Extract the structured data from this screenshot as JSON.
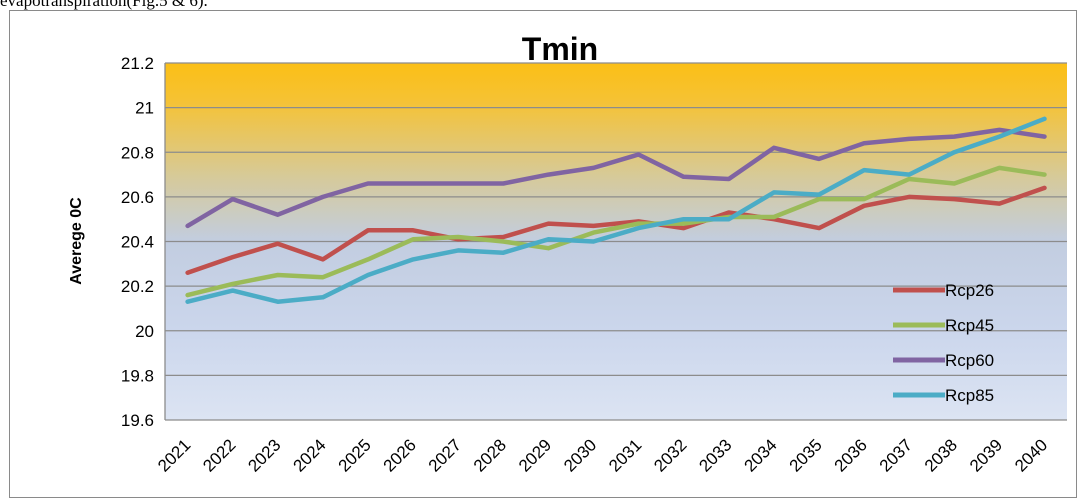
{
  "caption": "evapotranspiration(Fig.5 & 6).",
  "chart_data": {
    "type": "line",
    "title": "Tmin",
    "xlabel": "",
    "ylabel": "Averege 0C",
    "categories": [
      "2021",
      "2022",
      "2023",
      "2024",
      "2025",
      "2026",
      "2027",
      "2028",
      "2029",
      "2030",
      "2031",
      "2032",
      "2033",
      "2034",
      "2035",
      "2036",
      "2037",
      "2038",
      "2039",
      "2040"
    ],
    "ylim": [
      19.6,
      21.2
    ],
    "yticks": [
      19.6,
      19.8,
      20,
      20.2,
      20.4,
      20.6,
      20.8,
      21,
      21.2
    ],
    "grid": true,
    "legend_position": "right",
    "series": [
      {
        "name": "Rcp26",
        "color": "#c0504d",
        "values": [
          20.26,
          20.33,
          20.39,
          20.32,
          20.45,
          20.45,
          20.41,
          20.42,
          20.48,
          20.47,
          20.49,
          20.46,
          20.53,
          20.5,
          20.46,
          20.56,
          20.6,
          20.59,
          20.57,
          20.64
        ]
      },
      {
        "name": "Rcp45",
        "color": "#9bbb59",
        "values": [
          20.16,
          20.21,
          20.25,
          20.24,
          20.32,
          20.41,
          20.42,
          20.4,
          20.37,
          20.44,
          20.48,
          20.48,
          20.51,
          20.51,
          20.59,
          20.59,
          20.68,
          20.66,
          20.73,
          20.7
        ]
      },
      {
        "name": "Rcp60",
        "color": "#8064a2",
        "values": [
          20.47,
          20.59,
          20.52,
          20.6,
          20.66,
          20.66,
          20.66,
          20.66,
          20.7,
          20.73,
          20.79,
          20.69,
          20.68,
          20.82,
          20.77,
          20.84,
          20.86,
          20.87,
          20.9,
          20.87
        ]
      },
      {
        "name": "Rcp85",
        "color": "#4bacc6",
        "values": [
          20.13,
          20.18,
          20.13,
          20.15,
          20.25,
          20.32,
          20.36,
          20.35,
          20.41,
          20.4,
          20.46,
          20.5,
          20.5,
          20.62,
          20.61,
          20.72,
          20.7,
          20.8,
          20.87,
          20.95
        ]
      }
    ]
  }
}
